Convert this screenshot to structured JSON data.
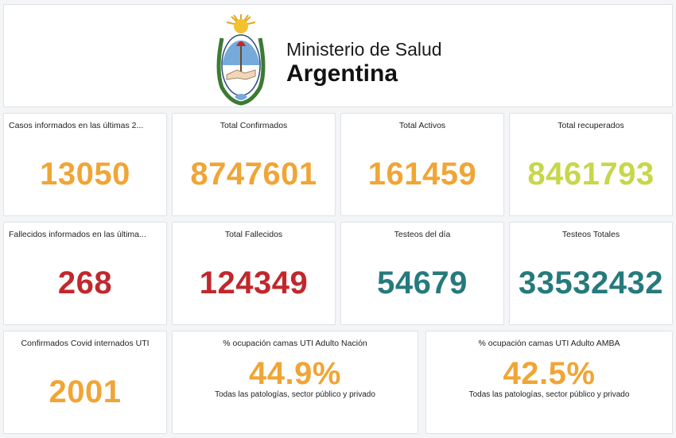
{
  "header": {
    "line1": "Ministerio de Salud",
    "line2": "Argentina"
  },
  "colors": {
    "orange": "#f0a535",
    "green": "#c7d74a",
    "red": "#c0282d",
    "teal": "#267a7c"
  },
  "row1": [
    {
      "title": "Casos informados en las últimas 2...",
      "value": "13050",
      "color": "orange"
    },
    {
      "title": "Total Confirmados",
      "value": "8747601",
      "color": "orange"
    },
    {
      "title": "Total Activos",
      "value": "161459",
      "color": "orange"
    },
    {
      "title": "Total recuperados",
      "value": "8461793",
      "color": "green"
    }
  ],
  "row2": [
    {
      "title": "Fallecidos informados en las última...",
      "value": "268",
      "color": "red"
    },
    {
      "title": "Total Fallecidos",
      "value": "124349",
      "color": "red"
    },
    {
      "title": "Testeos del día",
      "value": "54679",
      "color": "teal"
    },
    {
      "title": "Testeos Totales",
      "value": "33532432",
      "color": "teal"
    }
  ],
  "row3": [
    {
      "title": "Confirmados Covid internados UTI",
      "value": "2001",
      "color": "orange"
    },
    {
      "title": "% ocupación camas UTI Adulto Nación",
      "value": "44.9%",
      "sub": "Todas las patologías, sector público y privado",
      "color": "orange"
    },
    {
      "title": "% ocupación camas UTI Adulto AMBA",
      "value": "42.5%",
      "sub": "Todas las patologías, sector público y privado",
      "color": "orange"
    }
  ]
}
